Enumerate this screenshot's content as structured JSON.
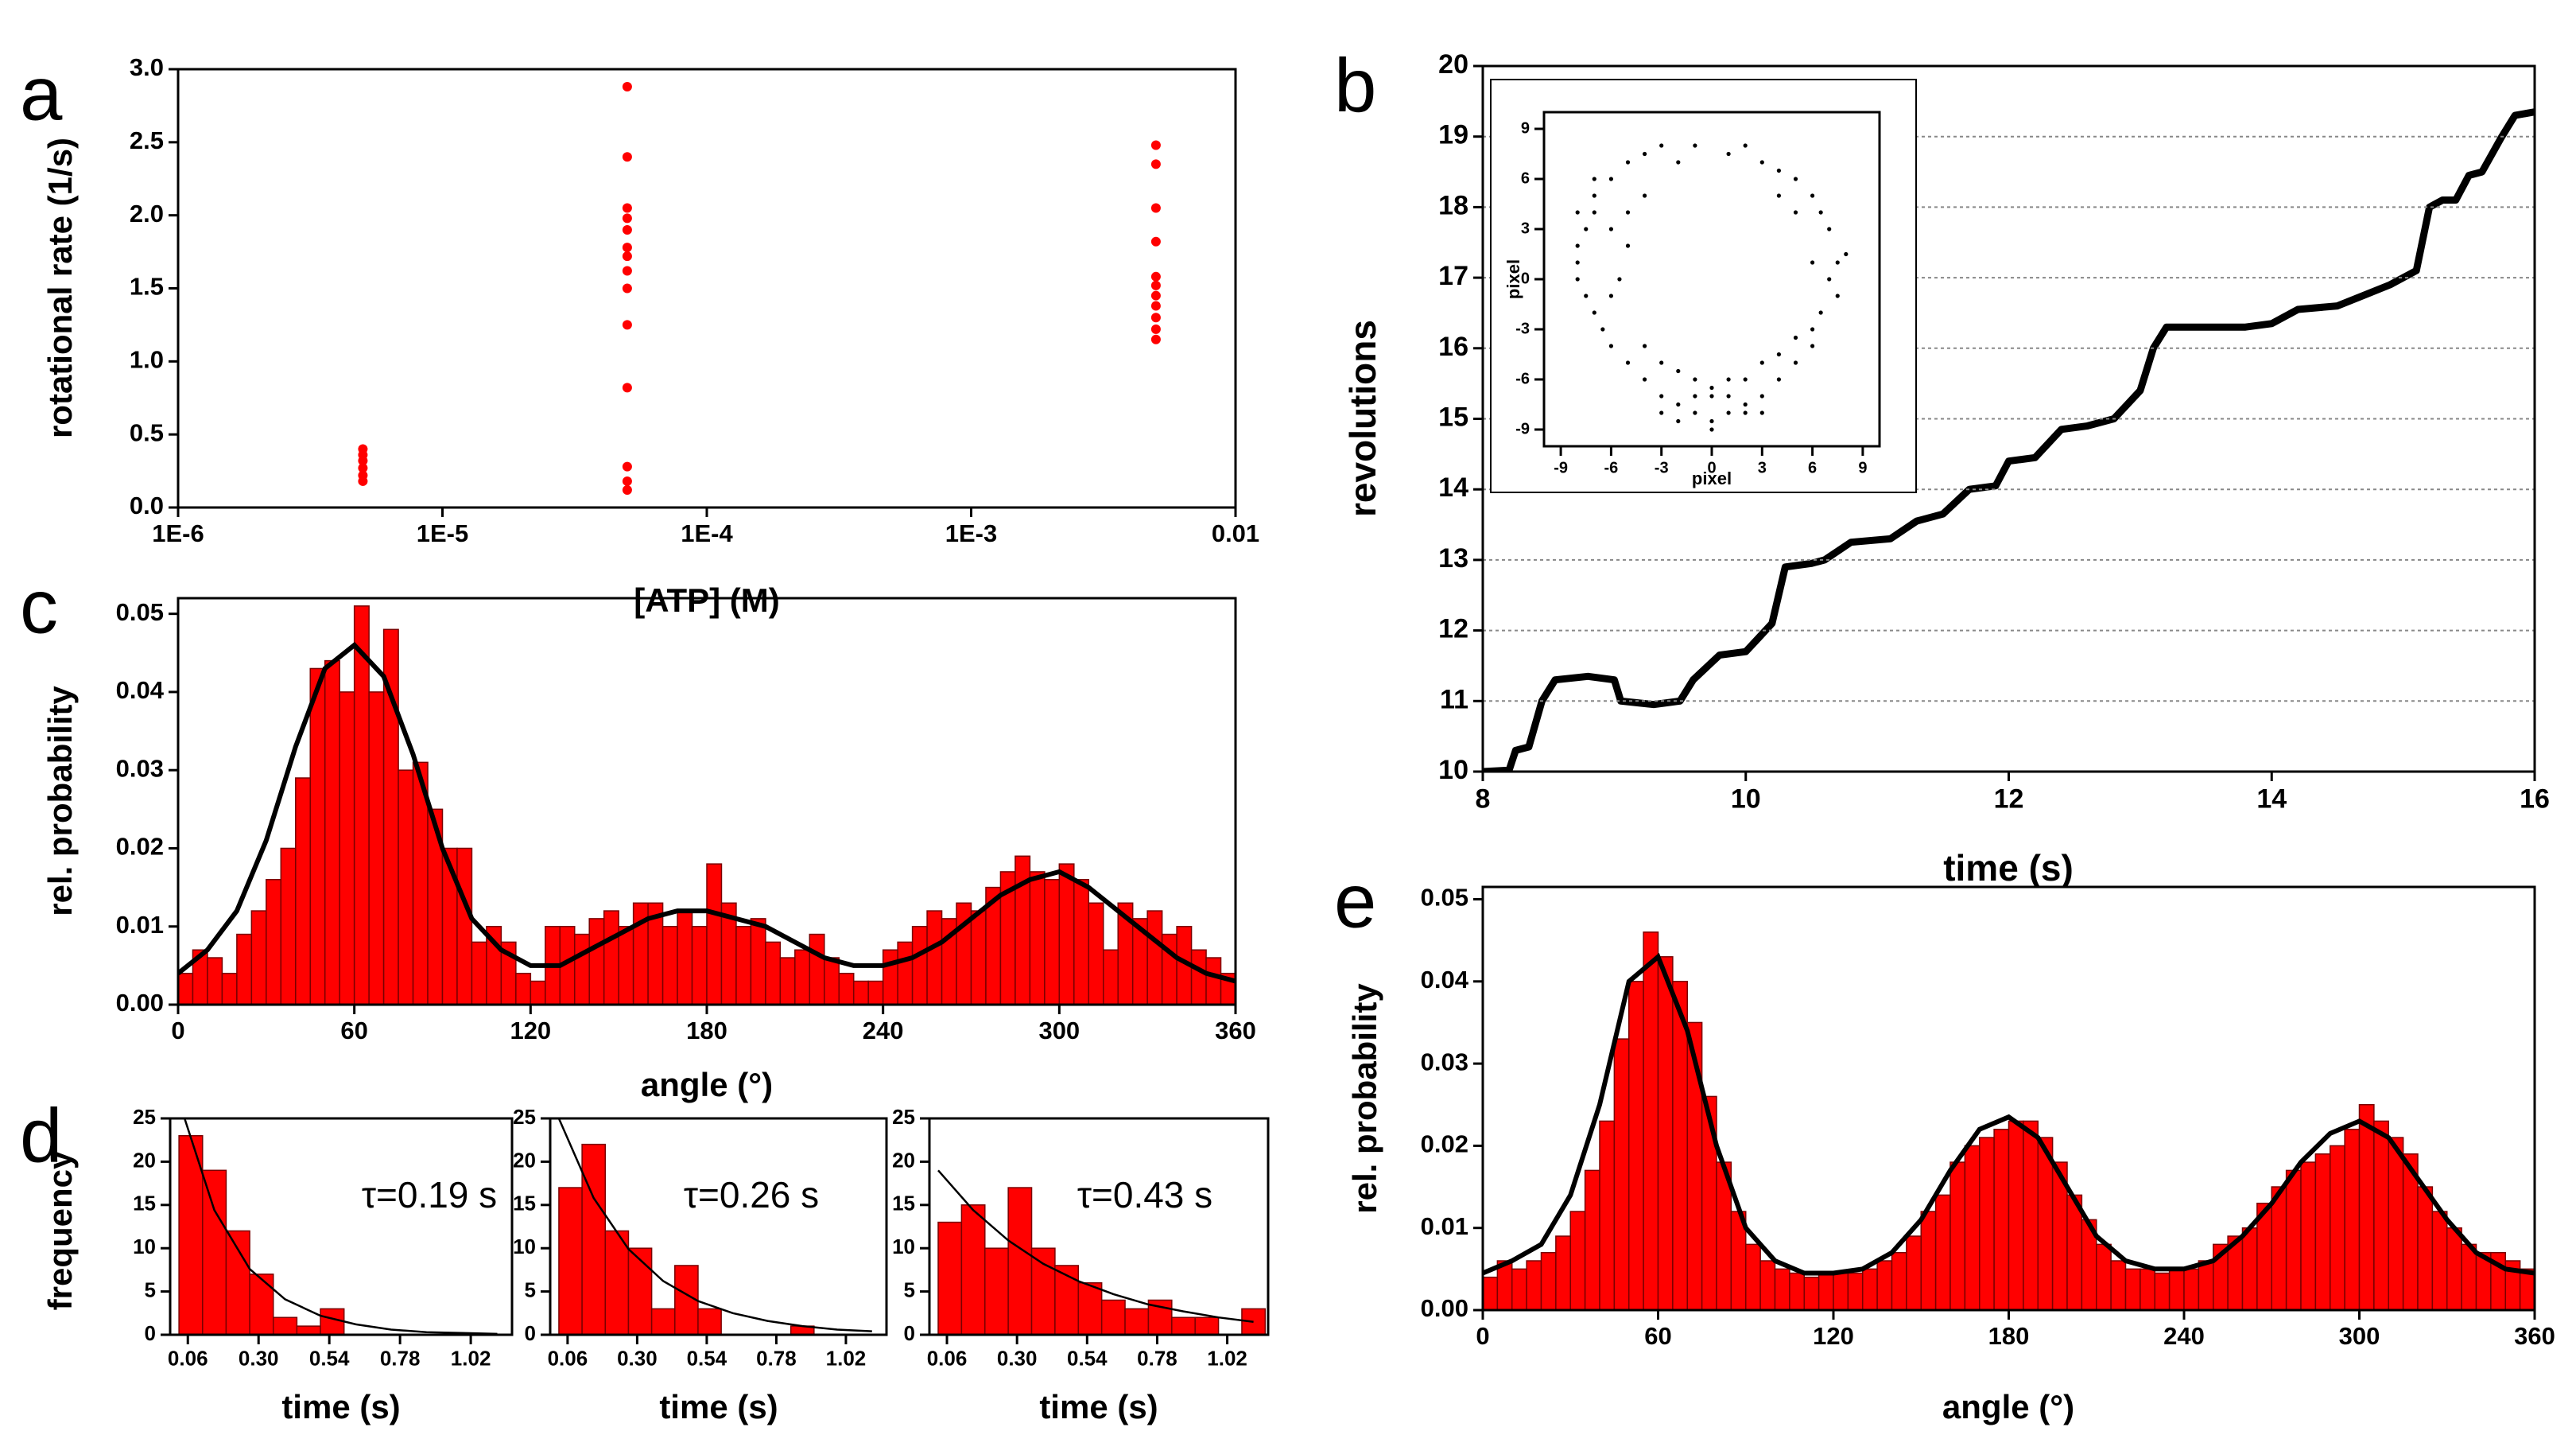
{
  "chart_data": [
    {
      "type": "scatter",
      "panel": "a",
      "xlabel": "[ATP] (M)",
      "ylabel": "rotational rate (1/s)",
      "xscale": "log",
      "xlim": [
        1e-06,
        0.01
      ],
      "xticks": [
        {
          "value": 1e-06,
          "label": "1E-6"
        },
        {
          "value": 1e-05,
          "label": "1E-5"
        },
        {
          "value": 0.0001,
          "label": "1E-4"
        },
        {
          "value": 0.001,
          "label": "1E-3"
        },
        0.01
      ],
      "ylim": [
        0,
        3
      ],
      "yticks": [
        {
          "value": 0,
          "label": "0.0"
        },
        0.5,
        {
          "value": 1,
          "label": "1.0"
        },
        1.5,
        {
          "value": 2,
          "label": "2.0"
        },
        2.5,
        {
          "value": 3,
          "label": "3.0"
        }
      ],
      "color": "#ff0000",
      "x": [
        5e-06,
        5e-06,
        5e-06,
        5e-06,
        5e-06,
        5e-06,
        5e-05,
        5e-05,
        5e-05,
        5e-05,
        5e-05,
        5e-05,
        5e-05,
        5e-05,
        5e-05,
        5e-05,
        5e-05,
        5e-05,
        5e-05,
        5e-05,
        0.005,
        0.005,
        0.005,
        0.005,
        0.005,
        0.005,
        0.005,
        0.005,
        0.005,
        0.005,
        0.005
      ],
      "y": [
        0.18,
        0.22,
        0.27,
        0.32,
        0.36,
        0.4,
        0.12,
        0.18,
        0.28,
        0.82,
        1.25,
        1.5,
        1.62,
        1.72,
        1.78,
        1.9,
        1.98,
        2.05,
        2.4,
        2.88,
        1.15,
        1.22,
        1.3,
        1.38,
        1.45,
        1.52,
        1.58,
        1.82,
        2.05,
        2.35,
        2.48
      ]
    },
    {
      "type": "line",
      "panel": "b",
      "xlabel": "time (s)",
      "ylabel": "revolutions",
      "xlim": [
        8,
        16
      ],
      "xticks": [
        8,
        10,
        12,
        14,
        16
      ],
      "ylim": [
        10,
        20
      ],
      "yticks": [
        10,
        11,
        12,
        13,
        14,
        15,
        16,
        17,
        18,
        19,
        20
      ],
      "grid": true,
      "color": "#000000",
      "x": [
        8.0,
        8.2,
        8.25,
        8.35,
        8.45,
        8.55,
        8.8,
        9.0,
        9.05,
        9.3,
        9.5,
        9.6,
        9.8,
        10.0,
        10.1,
        10.2,
        10.3,
        10.5,
        10.6,
        10.8,
        11.1,
        11.3,
        11.5,
        11.7,
        11.9,
        12.0,
        12.2,
        12.4,
        12.6,
        12.8,
        12.9,
        13.0,
        13.1,
        13.2,
        13.5,
        13.8,
        14.0,
        14.2,
        14.5,
        14.7,
        14.9,
        15.1,
        15.2,
        15.3,
        15.4,
        15.5,
        15.6,
        15.75,
        15.85,
        16.0
      ],
      "y": [
        10.0,
        10.02,
        10.3,
        10.35,
        11.0,
        11.3,
        11.35,
        11.3,
        11.0,
        10.95,
        11.0,
        11.3,
        11.65,
        11.7,
        11.9,
        12.1,
        12.9,
        12.95,
        13.0,
        13.25,
        13.3,
        13.55,
        13.65,
        14.0,
        14.05,
        14.4,
        14.45,
        14.85,
        14.9,
        15.0,
        15.2,
        15.4,
        16.0,
        16.3,
        16.3,
        16.3,
        16.35,
        16.55,
        16.6,
        16.75,
        16.9,
        17.1,
        18.0,
        18.1,
        18.1,
        18.45,
        18.5,
        19.0,
        19.3,
        19.35
      ],
      "inset": {
        "type": "scatter",
        "xlabel": "pixel",
        "ylabel": "pixel",
        "xlim": [
          -10,
          10
        ],
        "xticks": [
          -9,
          -6,
          -3,
          0,
          3,
          6,
          9
        ],
        "ylim": [
          -10,
          10
        ],
        "yticks": [
          -9,
          -6,
          -3,
          0,
          3,
          6,
          9
        ],
        "color": "#000000",
        "x": [
          -7,
          -6,
          -5,
          -4,
          -3,
          -2,
          -1,
          1,
          2,
          3,
          4,
          5,
          6,
          6.5,
          7,
          7.5,
          7,
          7.5,
          6.5,
          6,
          6,
          5,
          4,
          3,
          2,
          1,
          0,
          -1,
          -2,
          -3,
          -4,
          -5,
          -6,
          -6.5,
          -7,
          -7.5,
          -8,
          -8,
          -8,
          -7.5,
          -7,
          -6,
          -5,
          -5.5,
          -6,
          -1,
          0,
          1,
          2,
          3,
          -2,
          -3,
          4,
          5,
          -4,
          0,
          1,
          -1,
          2,
          -2,
          5,
          4,
          -4,
          -5,
          8,
          6,
          -7,
          -8,
          0,
          3,
          -3
        ],
        "y": [
          5,
          6,
          7,
          7.5,
          8,
          7,
          8,
          7.5,
          8,
          7,
          6.5,
          6,
          5,
          4,
          3,
          1,
          0,
          -1,
          -2,
          -3,
          -4,
          -5,
          -6,
          -7,
          -7.5,
          -8,
          -8.5,
          -8,
          -7.5,
          -7,
          -6,
          -5,
          -4,
          -3,
          -2,
          -1,
          0,
          1,
          2,
          3,
          4,
          3,
          2,
          0,
          -1,
          -6,
          -6.5,
          -6,
          -6,
          -5,
          -5.5,
          -5,
          -4.5,
          -3.5,
          -4,
          -7,
          -7,
          -7,
          -8,
          -8.5,
          4,
          5,
          5,
          4,
          1.5,
          1,
          6,
          4,
          -9,
          -8,
          -8
        ]
      }
    },
    {
      "type": "histogram",
      "panel": "c",
      "xlabel": "angle (°)",
      "ylabel": "rel. probability",
      "xlim": [
        0,
        360
      ],
      "xticks": [
        0,
        60,
        120,
        180,
        240,
        300,
        360
      ],
      "ylim": [
        0,
        0.052
      ],
      "yticks": [
        {
          "value": 0,
          "label": "0.00"
        },
        0.01,
        0.02,
        0.03,
        0.04,
        0.05
      ],
      "color": "#ff0000",
      "bins": [
        0,
        5,
        10,
        15,
        20,
        25,
        30,
        35,
        40,
        45,
        50,
        55,
        60,
        65,
        70,
        75,
        80,
        85,
        90,
        95,
        100,
        105,
        110,
        115,
        120,
        125,
        130,
        135,
        140,
        145,
        150,
        155,
        160,
        165,
        170,
        175,
        180,
        185,
        190,
        195,
        200,
        205,
        210,
        215,
        220,
        225,
        230,
        235,
        240,
        245,
        250,
        255,
        260,
        265,
        270,
        275,
        280,
        285,
        290,
        295,
        300,
        305,
        310,
        315,
        320,
        325,
        330,
        335,
        340,
        345,
        350,
        355,
        360
      ],
      "values": [
        0.004,
        0.007,
        0.006,
        0.004,
        0.009,
        0.012,
        0.016,
        0.02,
        0.029,
        0.043,
        0.044,
        0.04,
        0.051,
        0.04,
        0.048,
        0.03,
        0.031,
        0.025,
        0.02,
        0.02,
        0.008,
        0.01,
        0.008,
        0.004,
        0.003,
        0.01,
        0.01,
        0.009,
        0.011,
        0.012,
        0.01,
        0.013,
        0.013,
        0.01,
        0.012,
        0.01,
        0.018,
        0.013,
        0.01,
        0.011,
        0.008,
        0.006,
        0.007,
        0.009,
        0.006,
        0.004,
        0.003,
        0.003,
        0.007,
        0.008,
        0.01,
        0.012,
        0.011,
        0.013,
        0.012,
        0.015,
        0.017,
        0.019,
        0.017,
        0.016,
        0.018,
        0.016,
        0.013,
        0.007,
        0.013,
        0.011,
        0.012,
        0.009,
        0.01,
        0.007,
        0.006,
        0.004
      ],
      "fit": {
        "color": "#000000",
        "x": [
          0,
          10,
          20,
          30,
          40,
          50,
          60,
          70,
          80,
          90,
          100,
          110,
          120,
          130,
          140,
          150,
          160,
          170,
          180,
          190,
          200,
          210,
          220,
          230,
          240,
          250,
          260,
          270,
          280,
          290,
          300,
          310,
          320,
          330,
          340,
          350,
          360
        ],
        "y": [
          0.004,
          0.007,
          0.012,
          0.021,
          0.033,
          0.043,
          0.046,
          0.042,
          0.032,
          0.02,
          0.011,
          0.007,
          0.005,
          0.005,
          0.007,
          0.009,
          0.011,
          0.012,
          0.012,
          0.011,
          0.01,
          0.008,
          0.006,
          0.005,
          0.005,
          0.006,
          0.008,
          0.011,
          0.014,
          0.016,
          0.017,
          0.015,
          0.012,
          0.009,
          0.006,
          0.004,
          0.003
        ]
      }
    },
    {
      "type": "histogram",
      "panel": "d",
      "xlabel": "time (s)",
      "ylabel": "frequency",
      "annotation": "τ=0.19 s",
      "xlim": [
        0,
        1.16
      ],
      "xticks": [
        0.06,
        {
          "value": 0.3,
          "label": "0.30"
        },
        0.54,
        0.78,
        1.02
      ],
      "ylim": [
        0,
        25
      ],
      "yticks": [
        0,
        5,
        10,
        15,
        20,
        25
      ],
      "color": "#ff0000",
      "bins": [
        0.03,
        0.11,
        0.19,
        0.27,
        0.35,
        0.43,
        0.51,
        0.59
      ],
      "values": [
        23,
        19,
        12,
        7,
        2,
        1,
        3
      ],
      "fit": {
        "color": "#000000",
        "x": [
          0.03,
          0.15,
          0.27,
          0.39,
          0.51,
          0.63,
          0.75,
          0.87,
          0.99,
          1.11
        ],
        "y": [
          27,
          14.4,
          7.6,
          4.1,
          2.2,
          1.2,
          0.6,
          0.3,
          0.2,
          0.1
        ]
      }
    },
    {
      "type": "histogram",
      "xlabel": "time (s)",
      "annotation": "τ=0.26 s",
      "xlim": [
        0,
        1.16
      ],
      "xticks": [
        0.06,
        {
          "value": 0.3,
          "label": "0.30"
        },
        0.54,
        0.78,
        1.02
      ],
      "ylim": [
        0,
        25
      ],
      "yticks": [
        0,
        5,
        10,
        15,
        20,
        25
      ],
      "color": "#ff0000",
      "bins": [
        0.03,
        0.11,
        0.19,
        0.27,
        0.35,
        0.43,
        0.51,
        0.59,
        0.67,
        0.75,
        0.83,
        0.91
      ],
      "values": [
        17,
        22,
        12,
        10,
        3,
        8,
        3,
        0,
        0,
        0,
        1
      ],
      "fit": {
        "color": "#000000",
        "x": [
          0.03,
          0.15,
          0.27,
          0.39,
          0.51,
          0.63,
          0.75,
          0.87,
          0.99,
          1.11
        ],
        "y": [
          25,
          15.8,
          9.9,
          6.2,
          3.9,
          2.5,
          1.6,
          1.0,
          0.6,
          0.4
        ]
      }
    },
    {
      "type": "histogram",
      "xlabel": "time (s)",
      "annotation": "τ=0.43 s",
      "xlim": [
        0,
        1.16
      ],
      "xticks": [
        0.06,
        {
          "value": 0.3,
          "label": "0.30"
        },
        0.54,
        0.78,
        1.02
      ],
      "ylim": [
        0,
        25
      ],
      "yticks": [
        0,
        5,
        10,
        15,
        20,
        25
      ],
      "color": "#ff0000",
      "bins": [
        0.03,
        0.11,
        0.19,
        0.27,
        0.35,
        0.43,
        0.51,
        0.59,
        0.67,
        0.75,
        0.83,
        0.91,
        0.99,
        1.07,
        1.15
      ],
      "values": [
        13,
        15,
        10,
        17,
        10,
        8,
        6,
        4,
        3,
        4,
        2,
        2,
        0,
        3
      ],
      "fit": {
        "color": "#000000",
        "x": [
          0.03,
          0.15,
          0.27,
          0.39,
          0.51,
          0.63,
          0.75,
          0.87,
          0.99,
          1.11
        ],
        "y": [
          19,
          14.4,
          10.9,
          8.2,
          6.2,
          4.7,
          3.5,
          2.7,
          2.0,
          1.5
        ]
      }
    },
    {
      "type": "histogram",
      "panel": "e",
      "xlabel": "angle (°)",
      "ylabel": "rel. probability",
      "xlim": [
        0,
        360
      ],
      "xticks": [
        0,
        60,
        120,
        180,
        240,
        300,
        360
      ],
      "ylim": [
        0,
        0.0515
      ],
      "yticks": [
        {
          "value": 0,
          "label": "0.00"
        },
        0.01,
        0.02,
        0.03,
        0.04,
        0.05
      ],
      "color": "#ff0000",
      "bins": [
        0,
        5,
        10,
        15,
        20,
        25,
        30,
        35,
        40,
        45,
        50,
        55,
        60,
        65,
        70,
        75,
        80,
        85,
        90,
        95,
        100,
        105,
        110,
        115,
        120,
        125,
        130,
        135,
        140,
        145,
        150,
        155,
        160,
        165,
        170,
        175,
        180,
        185,
        190,
        195,
        200,
        205,
        210,
        215,
        220,
        225,
        230,
        235,
        240,
        245,
        250,
        255,
        260,
        265,
        270,
        275,
        280,
        285,
        290,
        295,
        300,
        305,
        310,
        315,
        320,
        325,
        330,
        335,
        340,
        345,
        350,
        355,
        360
      ],
      "values": [
        0.004,
        0.006,
        0.005,
        0.006,
        0.007,
        0.009,
        0.012,
        0.017,
        0.023,
        0.033,
        0.04,
        0.046,
        0.043,
        0.04,
        0.035,
        0.026,
        0.018,
        0.012,
        0.008,
        0.006,
        0.005,
        0.0045,
        0.004,
        0.0045,
        0.0045,
        0.0045,
        0.005,
        0.006,
        0.007,
        0.009,
        0.012,
        0.014,
        0.018,
        0.02,
        0.021,
        0.022,
        0.023,
        0.023,
        0.021,
        0.018,
        0.014,
        0.011,
        0.008,
        0.006,
        0.005,
        0.005,
        0.0045,
        0.005,
        0.005,
        0.006,
        0.008,
        0.009,
        0.01,
        0.013,
        0.015,
        0.017,
        0.018,
        0.019,
        0.02,
        0.022,
        0.025,
        0.023,
        0.021,
        0.019,
        0.015,
        0.012,
        0.01,
        0.008,
        0.007,
        0.007,
        0.006,
        0.005
      ],
      "fit": {
        "color": "#000000",
        "x": [
          0,
          10,
          20,
          30,
          40,
          50,
          60,
          70,
          80,
          90,
          100,
          110,
          120,
          130,
          140,
          150,
          160,
          170,
          180,
          190,
          200,
          210,
          220,
          230,
          240,
          250,
          260,
          270,
          280,
          290,
          300,
          310,
          320,
          330,
          340,
          350,
          360
        ],
        "y": [
          0.0045,
          0.006,
          0.008,
          0.014,
          0.025,
          0.04,
          0.043,
          0.034,
          0.02,
          0.01,
          0.006,
          0.0045,
          0.0045,
          0.005,
          0.007,
          0.011,
          0.017,
          0.022,
          0.0235,
          0.021,
          0.015,
          0.009,
          0.006,
          0.005,
          0.005,
          0.006,
          0.009,
          0.013,
          0.018,
          0.0215,
          0.023,
          0.021,
          0.016,
          0.011,
          0.007,
          0.005,
          0.0045
        ]
      }
    }
  ]
}
